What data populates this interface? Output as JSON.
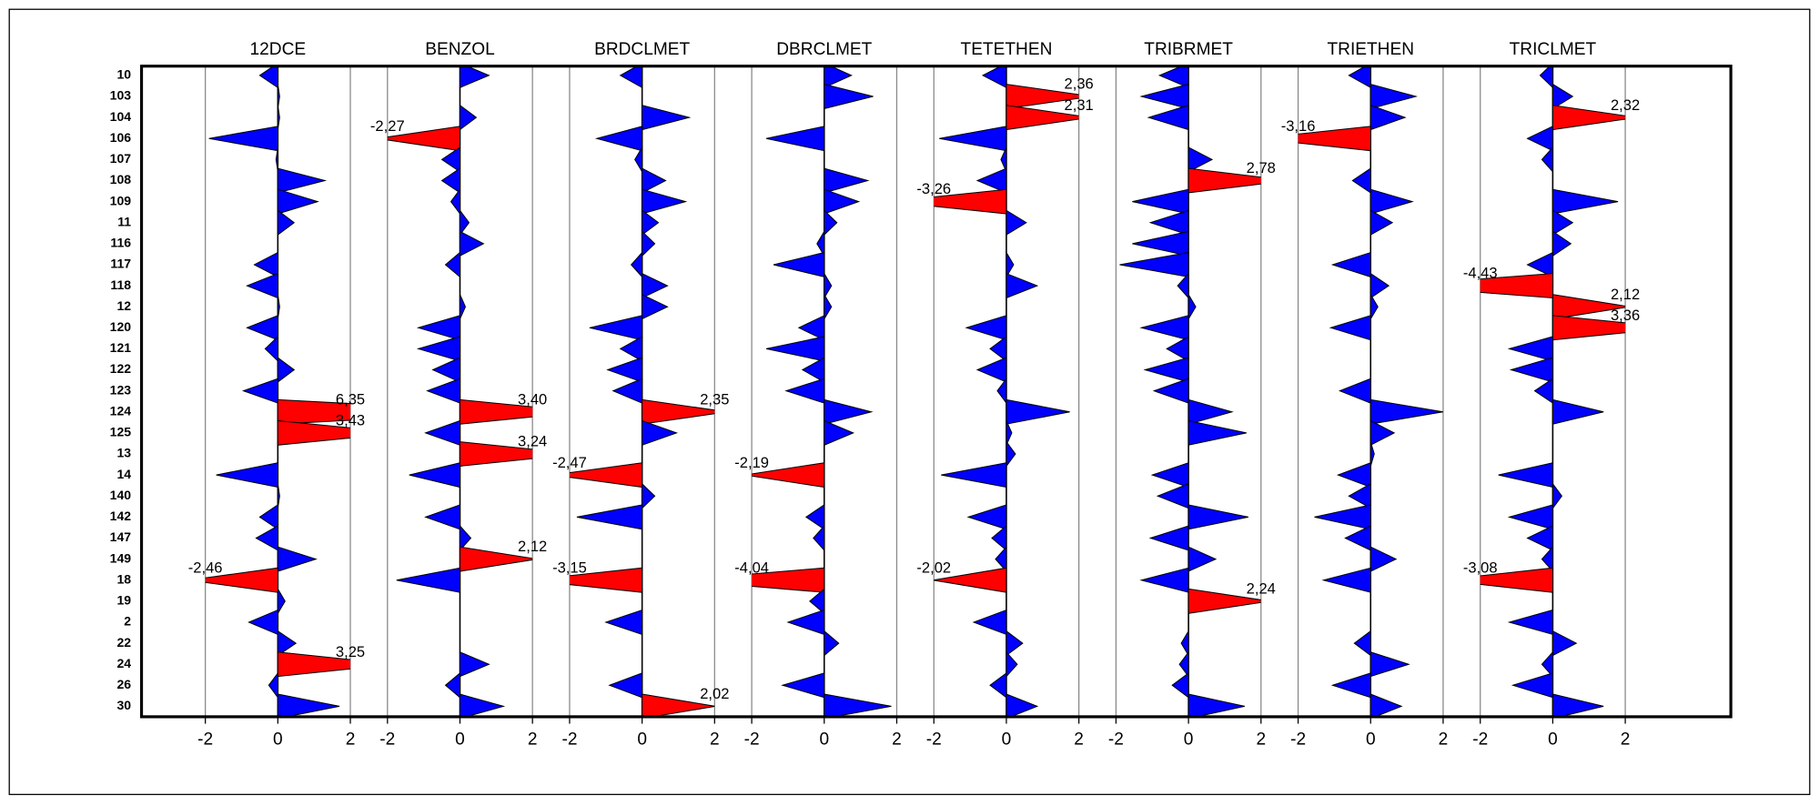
{
  "chart_data": {
    "type": "spike",
    "categories": [
      "10",
      "103",
      "104",
      "106",
      "107",
      "108",
      "109",
      "11",
      "116",
      "117",
      "118",
      "12",
      "120",
      "121",
      "122",
      "123",
      "124",
      "125",
      "13",
      "14",
      "140",
      "142",
      "147",
      "149",
      "18",
      "19",
      "2",
      "22",
      "24",
      "26",
      "30"
    ],
    "xlim": [
      -2,
      2
    ],
    "xticks": [
      -2,
      0,
      2
    ],
    "grid": true,
    "color": "#0000ff",
    "highlight_color": "#ff0000",
    "panels": [
      {
        "title": "12DCE",
        "values": [
          -0.5,
          0.05,
          0.05,
          -1.9,
          -0.05,
          1.3,
          1.1,
          0.45,
          0,
          -0.65,
          -0.85,
          0.05,
          -0.85,
          -0.35,
          0.45,
          -0.95,
          6.35,
          3.43,
          0,
          -1.7,
          0.05,
          -0.5,
          -0.6,
          1.05,
          -2.46,
          0.2,
          -0.8,
          0.5,
          3.25,
          -0.25,
          1.7
        ],
        "value_labels": [
          null,
          null,
          null,
          null,
          null,
          null,
          null,
          null,
          null,
          null,
          null,
          null,
          null,
          null,
          null,
          null,
          "6,35",
          "3,43",
          null,
          null,
          null,
          null,
          null,
          null,
          "-2,46",
          null,
          null,
          null,
          "3,25",
          null,
          null
        ]
      },
      {
        "title": "BENZOL",
        "values": [
          0.8,
          0,
          0.45,
          -2.27,
          -0.5,
          -0.5,
          -0.25,
          0.25,
          0.65,
          -0.4,
          0,
          0.15,
          -1.15,
          -1.15,
          -0.75,
          -0.9,
          3.4,
          -0.95,
          3.24,
          -1.4,
          0,
          -0.95,
          0.3,
          2.12,
          -1.75,
          0,
          0,
          0,
          0.8,
          -0.4,
          1.2
        ],
        "value_labels": [
          null,
          null,
          null,
          "-2,27",
          null,
          null,
          null,
          null,
          null,
          null,
          null,
          null,
          null,
          null,
          null,
          null,
          "3,40",
          null,
          "3,24",
          null,
          null,
          null,
          null,
          "2,12",
          null,
          null,
          null,
          null,
          null,
          null,
          null
        ]
      },
      {
        "title": "BRDCLMET",
        "values": [
          -0.6,
          0,
          1.3,
          -1.25,
          -0.2,
          0.65,
          1.2,
          0.45,
          0.35,
          -0.3,
          0.7,
          0.7,
          -1.45,
          -0.6,
          -0.95,
          -0.8,
          2.35,
          0.95,
          0,
          -2.47,
          0.35,
          -1.8,
          0,
          0,
          -3.15,
          0,
          -1,
          0,
          0,
          -0.9,
          2.02
        ],
        "value_labels": [
          null,
          null,
          null,
          null,
          null,
          null,
          null,
          null,
          null,
          null,
          null,
          null,
          null,
          null,
          null,
          null,
          "2,35",
          null,
          null,
          "-2,47",
          null,
          null,
          null,
          null,
          "-3,15",
          null,
          null,
          null,
          null,
          null,
          "2,02"
        ]
      },
      {
        "title": "DBRCLMET",
        "values": [
          0.75,
          1.35,
          0,
          -1.6,
          0,
          1.2,
          0.95,
          0.35,
          -0.2,
          -1.4,
          0.2,
          0.2,
          -0.7,
          -1.6,
          -0.6,
          -1.05,
          1.3,
          0.8,
          0,
          -2.19,
          0,
          -0.5,
          -0.3,
          0,
          -4.04,
          -0.4,
          -1,
          0.4,
          0,
          -1.15,
          1.85
        ],
        "value_labels": [
          null,
          null,
          null,
          null,
          null,
          null,
          null,
          null,
          null,
          null,
          null,
          null,
          null,
          null,
          null,
          null,
          null,
          null,
          null,
          "-2,19",
          null,
          null,
          null,
          null,
          "-4,04",
          null,
          null,
          null,
          null,
          null,
          null
        ]
      },
      {
        "title": "TETETHEN",
        "values": [
          -0.65,
          2.36,
          2.31,
          -1.85,
          -0.15,
          -0.8,
          -3.26,
          0.55,
          0,
          0.2,
          0.85,
          0,
          -1.1,
          -0.45,
          -0.8,
          -0.25,
          1.75,
          0.15,
          0.25,
          -1.8,
          0,
          -1.05,
          -0.4,
          -0.3,
          -2.02,
          0,
          -0.9,
          0.45,
          0.3,
          -0.45,
          0.85
        ],
        "value_labels": [
          null,
          "2,36",
          "2,31",
          null,
          null,
          null,
          "-3,26",
          null,
          null,
          null,
          null,
          null,
          null,
          null,
          null,
          null,
          null,
          null,
          null,
          null,
          null,
          null,
          null,
          null,
          "-2,02",
          null,
          null,
          null,
          null,
          null,
          null
        ]
      },
      {
        "title": "TRIBRMET",
        "values": [
          -0.8,
          -1.3,
          -1.1,
          0,
          0.65,
          2.78,
          -1.55,
          -1.05,
          -1.55,
          -1.9,
          -0.3,
          0.2,
          -1.3,
          -0.6,
          -1.2,
          -0.95,
          1.2,
          1.6,
          0,
          -1,
          -0.85,
          1.65,
          -1.05,
          0.75,
          -1.3,
          2.24,
          0,
          -0.2,
          -0.25,
          -0.45,
          1.55
        ],
        "value_labels": [
          null,
          null,
          null,
          null,
          null,
          "2,78",
          null,
          null,
          null,
          null,
          null,
          null,
          null,
          null,
          null,
          null,
          null,
          null,
          null,
          null,
          null,
          null,
          null,
          null,
          null,
          "2,24",
          null,
          null,
          null,
          null,
          null
        ]
      },
      {
        "title": "TRIETHEN",
        "values": [
          -0.6,
          1.25,
          0.95,
          -3.16,
          0,
          -0.5,
          1.15,
          0.6,
          0,
          -1.05,
          0.5,
          0.2,
          -1.1,
          0,
          0,
          -0.85,
          2,
          0.65,
          0.1,
          -0.9,
          -0.6,
          -1.55,
          -0.7,
          0.7,
          -1.3,
          0,
          0,
          -0.45,
          1.05,
          -1.05,
          0.85
        ],
        "value_labels": [
          null,
          null,
          null,
          "-3,16",
          null,
          null,
          null,
          null,
          null,
          null,
          null,
          null,
          null,
          null,
          null,
          null,
          null,
          null,
          null,
          null,
          null,
          null,
          null,
          null,
          null,
          null,
          null,
          null,
          null,
          null,
          null
        ]
      },
      {
        "title": "TRICLMET",
        "values": [
          -0.35,
          0.55,
          2.32,
          -0.7,
          -0.3,
          0,
          1.8,
          0.55,
          0.5,
          -0.7,
          -4.43,
          2.12,
          3.36,
          -1.2,
          -1.15,
          -0.5,
          1.4,
          0,
          0,
          -1.5,
          0.25,
          -1.2,
          -0.7,
          -0.3,
          -3.08,
          0,
          -1.2,
          0.65,
          -0.3,
          -1.1,
          1.4
        ],
        "value_labels": [
          null,
          null,
          "2,32",
          null,
          null,
          null,
          null,
          null,
          null,
          null,
          "-4,43",
          "2,12",
          "3,36",
          null,
          null,
          null,
          null,
          null,
          null,
          null,
          null,
          null,
          null,
          null,
          "-3,08",
          null,
          null,
          null,
          null,
          null,
          null
        ]
      }
    ]
  }
}
